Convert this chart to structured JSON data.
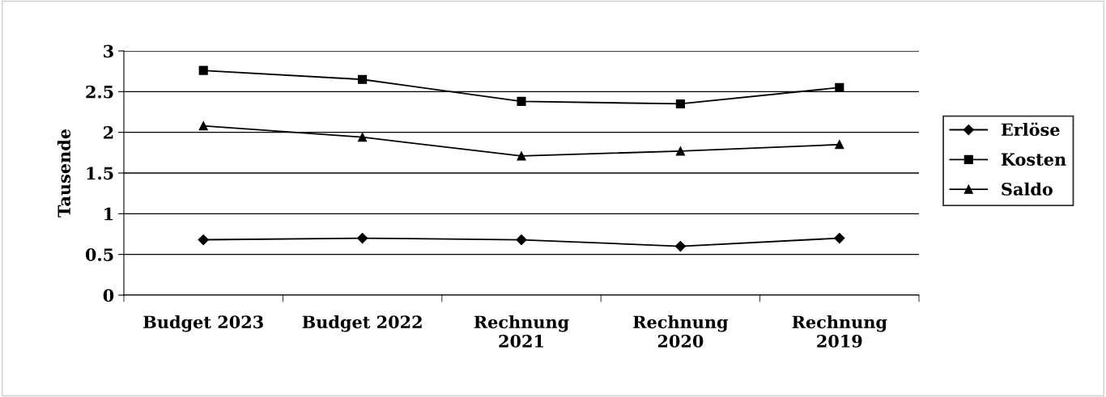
{
  "chart_data": {
    "type": "line",
    "ylabel": "Tausende",
    "categories": [
      "Budget 2023",
      "Budget 2022",
      "Rechnung 2021",
      "Rechnung 2020",
      "Rechnung 2019"
    ],
    "series": [
      {
        "name": "Erlöse",
        "color": "#000000",
        "marker": "diamond",
        "values": [
          0.68,
          0.7,
          0.68,
          0.6,
          0.7
        ]
      },
      {
        "name": "Kosten",
        "color": "#000000",
        "marker": "square",
        "values": [
          2.76,
          2.65,
          2.38,
          2.35,
          2.55
        ]
      },
      {
        "name": "Saldo",
        "color": "#000000",
        "marker": "triangle",
        "values": [
          2.08,
          1.94,
          1.71,
          1.77,
          1.85
        ]
      }
    ],
    "ylim": [
      0,
      3
    ],
    "yticks": [
      0,
      0.5,
      1,
      1.5,
      2,
      2.5,
      3
    ],
    "grid": "y",
    "legend": "right",
    "line_style": "solid"
  }
}
